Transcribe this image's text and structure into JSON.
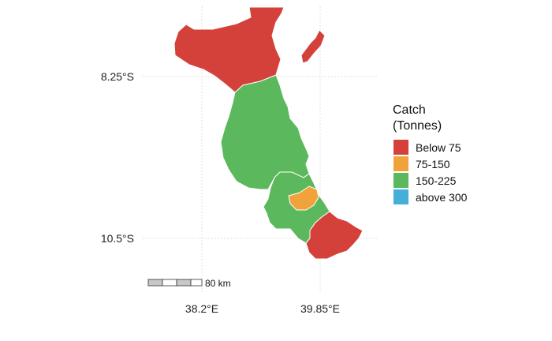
{
  "map": {
    "latitude_labels": [
      "8.25°S",
      "10.5°S"
    ],
    "longitude_labels": [
      "38.2°E",
      "39.85°E"
    ],
    "gridlines": true,
    "scale_bar_label": "80 km"
  },
  "legend": {
    "title_lines": [
      "Catch",
      "(Tonnes)"
    ],
    "placement": "right",
    "items": [
      {
        "label": "Below 75",
        "color": "#d4413b"
      },
      {
        "label": "75-150",
        "color": "#f0a33a"
      },
      {
        "label": "150-225",
        "color": "#5cb85c"
      },
      {
        "label": "above 300",
        "color": "#44b0d8"
      }
    ]
  },
  "regions": [
    {
      "name": "northern-district-red",
      "category": "Below 75",
      "color": "#d4413b"
    },
    {
      "name": "northern-island-red",
      "category": "Below 75",
      "color": "#d4413b"
    },
    {
      "name": "central-district-green",
      "category": "150-225",
      "color": "#5cb85c"
    },
    {
      "name": "south-central-district-green",
      "category": "150-225",
      "color": "#5cb85c"
    },
    {
      "name": "inner-district-orange",
      "category": "75-150",
      "color": "#f0a33a"
    },
    {
      "name": "southern-district-red",
      "category": "Below 75",
      "color": "#d4413b"
    }
  ]
}
